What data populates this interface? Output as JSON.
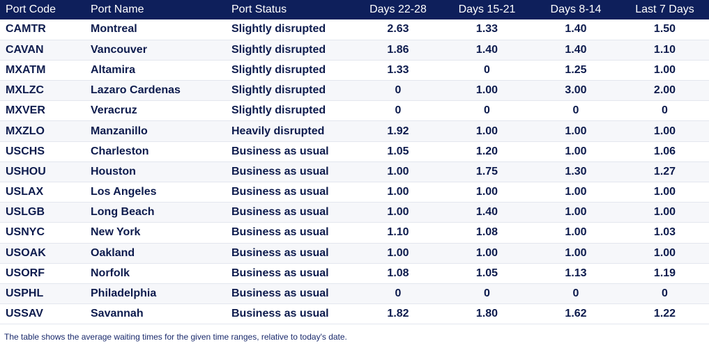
{
  "table": {
    "headers": [
      "Port Code",
      "Port Name",
      "Port Status",
      "Days 22-28",
      "Days 15-21",
      "Days 8-14",
      "Last 7 Days"
    ],
    "rows": [
      [
        "CAMTR",
        "Montreal",
        "Slightly disrupted",
        "2.63",
        "1.33",
        "1.40",
        "1.50"
      ],
      [
        "CAVAN",
        "Vancouver",
        "Slightly disrupted",
        "1.86",
        "1.40",
        "1.40",
        "1.10"
      ],
      [
        "MXATM",
        "Altamira",
        "Slightly disrupted",
        "1.33",
        "0",
        "1.25",
        "1.00"
      ],
      [
        "MXLZC",
        "Lazaro Cardenas",
        "Slightly disrupted",
        "0",
        "1.00",
        "3.00",
        "2.00"
      ],
      [
        "MXVER",
        "Veracruz",
        "Slightly disrupted",
        "0",
        "0",
        "0",
        "0"
      ],
      [
        "MXZLO",
        "Manzanillo",
        "Heavily disrupted",
        "1.92",
        "1.00",
        "1.00",
        "1.00"
      ],
      [
        "USCHS",
        "Charleston",
        "Business as usual",
        "1.05",
        "1.20",
        "1.00",
        "1.06"
      ],
      [
        "USHOU",
        "Houston",
        "Business as usual",
        "1.00",
        "1.75",
        "1.30",
        "1.27"
      ],
      [
        "USLAX",
        "Los Angeles",
        "Business as usual",
        "1.00",
        "1.00",
        "1.00",
        "1.00"
      ],
      [
        "USLGB",
        "Long Beach",
        "Business as usual",
        "1.00",
        "1.40",
        "1.00",
        "1.00"
      ],
      [
        "USNYC",
        "New York",
        "Business as usual",
        "1.10",
        "1.08",
        "1.00",
        "1.03"
      ],
      [
        "USOAK",
        "Oakland",
        "Business as usual",
        "1.00",
        "1.00",
        "1.00",
        "1.00"
      ],
      [
        "USORF",
        "Norfolk",
        "Business as usual",
        "1.08",
        "1.05",
        "1.13",
        "1.19"
      ],
      [
        "USPHL",
        "Philadelphia",
        "Business as usual",
        "0",
        "0",
        "0",
        "0"
      ],
      [
        "USSAV",
        "Savannah",
        "Business as usual",
        "1.82",
        "1.80",
        "1.62",
        "1.22"
      ]
    ]
  },
  "footnote": "The table shows the average waiting times for the given time ranges, relative to today's date.",
  "colors": {
    "header_bg": "#0e1f5b",
    "header_text": "#ffffff",
    "body_text": "#0d1b4d"
  }
}
